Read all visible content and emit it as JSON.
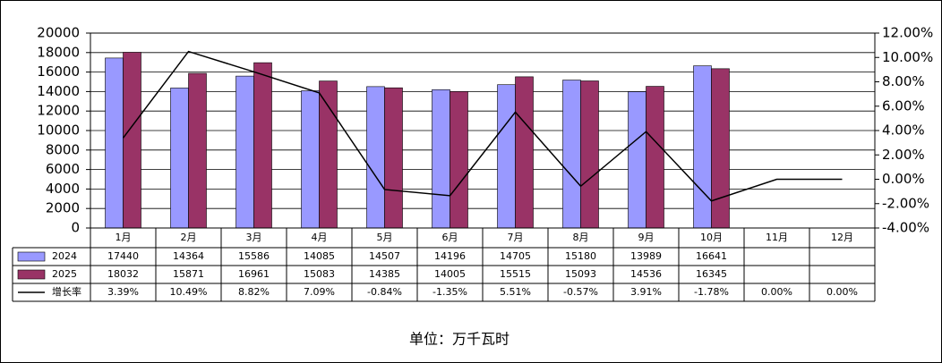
{
  "chart_data": {
    "type": "bar",
    "categories": [
      "1月",
      "2月",
      "3月",
      "4月",
      "5月",
      "6月",
      "7月",
      "8月",
      "9月",
      "10月",
      "11月",
      "12月"
    ],
    "series": [
      {
        "name": "2024",
        "color": "#9999ff",
        "values": [
          17440,
          14364,
          15586,
          14085,
          14507,
          14196,
          14705,
          15180,
          13989,
          16641,
          null,
          null
        ]
      },
      {
        "name": "2025",
        "color": "#993366",
        "values": [
          18032,
          15871,
          16961,
          15083,
          14385,
          14005,
          15515,
          15093,
          14536,
          16345,
          null,
          null
        ]
      },
      {
        "name": "增长率",
        "color": "#000000",
        "type": "line",
        "axis": "y2",
        "values": [
          3.39,
          10.49,
          8.82,
          7.09,
          -0.84,
          -1.35,
          5.51,
          -0.57,
          3.91,
          -1.78,
          0.0,
          0.0
        ],
        "value_labels": [
          "3.39%",
          "10.49%",
          "8.82%",
          "7.09%",
          "-0.84%",
          "-1.35%",
          "5.51%",
          "-0.57%",
          "3.91%",
          "-1.78%",
          "0.00%",
          "0.00%"
        ]
      }
    ],
    "ylim": [
      0,
      20000
    ],
    "yticks": [
      0,
      2000,
      4000,
      6000,
      8000,
      10000,
      12000,
      14000,
      16000,
      18000,
      20000
    ],
    "y2lim": [
      -4,
      12
    ],
    "y2ticks": [
      {
        "value": -4,
        "label": "-4.00%"
      },
      {
        "value": -2,
        "label": "-2.00%"
      },
      {
        "value": 0,
        "label": "0.00%"
      },
      {
        "value": 2,
        "label": "2.00%"
      },
      {
        "value": 4,
        "label": "4.00%"
      },
      {
        "value": 6,
        "label": "6.00%"
      },
      {
        "value": 8,
        "label": "8.00%"
      },
      {
        "value": 10,
        "label": "10.00%"
      },
      {
        "value": 12,
        "label": "12.00%"
      }
    ],
    "grid": true,
    "annotation": "单位：万千瓦时"
  }
}
